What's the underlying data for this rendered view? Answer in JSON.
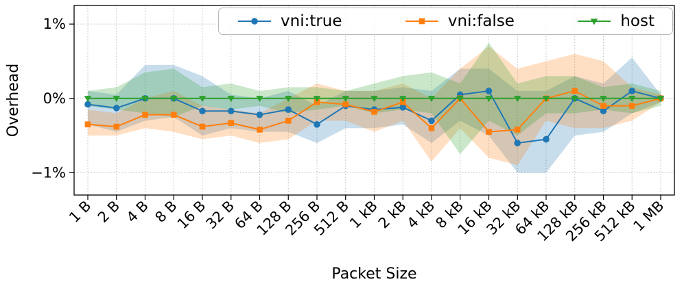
{
  "chart_data": {
    "type": "line",
    "title": "",
    "xlabel": "Packet Size",
    "ylabel": "Overhead",
    "ylim": [
      -1.3,
      1.25
    ],
    "grid": true,
    "legend_position": "upper center",
    "yticks": [
      {
        "value": 1,
        "label": "1%"
      },
      {
        "value": 0,
        "label": "0%"
      },
      {
        "value": -1,
        "label": "−1%"
      }
    ],
    "categories": [
      "1 B",
      "2 B",
      "4 B",
      "8 B",
      "16 B",
      "32 B",
      "64 B",
      "128 B",
      "256 B",
      "512 B",
      "1 kB",
      "2 kB",
      "4 kB",
      "8 kB",
      "16 kB",
      "32 kB",
      "64 kB",
      "128 kB",
      "256 kB",
      "512 kB",
      "1 MB"
    ],
    "series": [
      {
        "name": "vni:true",
        "color": "#1f77b4",
        "marker": "circle",
        "values": [
          -0.08,
          -0.13,
          0.0,
          0.0,
          -0.17,
          -0.17,
          -0.22,
          -0.15,
          -0.35,
          -0.1,
          -0.15,
          -0.12,
          -0.3,
          0.05,
          0.1,
          -0.6,
          -0.55,
          0.0,
          -0.17,
          0.1,
          0.0
        ],
        "band_low": [
          -0.35,
          -0.45,
          -0.3,
          -0.25,
          -0.5,
          -0.4,
          -0.45,
          -0.45,
          -0.6,
          -0.4,
          -0.4,
          -0.35,
          -0.6,
          -0.3,
          -0.5,
          -1.0,
          -1.0,
          -0.5,
          -0.45,
          -0.2,
          -0.05
        ],
        "band_high": [
          0.1,
          0.05,
          0.45,
          0.45,
          0.3,
          0.05,
          0.0,
          0.1,
          -0.1,
          0.1,
          0.1,
          0.15,
          0.1,
          0.4,
          0.4,
          0.1,
          0.1,
          0.3,
          0.2,
          0.55,
          0.05
        ]
      },
      {
        "name": "vni:false",
        "color": "#ff7f0e",
        "marker": "square",
        "values": [
          -0.35,
          -0.38,
          -0.22,
          -0.22,
          -0.38,
          -0.33,
          -0.42,
          -0.3,
          -0.05,
          -0.08,
          -0.18,
          -0.05,
          -0.4,
          0.0,
          -0.45,
          -0.42,
          0.0,
          0.1,
          -0.1,
          -0.1,
          0.0
        ],
        "band_low": [
          -0.5,
          -0.5,
          -0.4,
          -0.45,
          -0.55,
          -0.5,
          -0.6,
          -0.55,
          -0.3,
          -0.3,
          -0.45,
          -0.3,
          -0.85,
          -0.4,
          -0.8,
          -0.9,
          -0.3,
          -0.4,
          -0.4,
          -0.3,
          -0.05
        ],
        "band_high": [
          -0.15,
          -0.2,
          0.0,
          0.1,
          -0.1,
          -0.15,
          -0.2,
          0.0,
          0.2,
          0.1,
          0.1,
          0.2,
          0.0,
          0.4,
          0.7,
          0.4,
          0.5,
          0.6,
          0.5,
          0.15,
          0.05
        ]
      },
      {
        "name": "host",
        "color": "#2ca02c",
        "marker": "triangle-down",
        "values": [
          0,
          0,
          0,
          0,
          0,
          0,
          0,
          0,
          0,
          0,
          0,
          0,
          0,
          0,
          0,
          0,
          0,
          0,
          0,
          0,
          0
        ],
        "band_low": [
          -0.1,
          -0.15,
          -0.2,
          -0.25,
          -0.1,
          -0.15,
          -0.1,
          -0.2,
          -0.15,
          -0.1,
          -0.2,
          -0.15,
          -0.2,
          -0.75,
          -0.3,
          -0.5,
          -0.2,
          -0.2,
          -0.15,
          -0.2,
          -0.1
        ],
        "band_high": [
          0.1,
          0.15,
          0.35,
          0.4,
          0.15,
          0.2,
          0.1,
          0.15,
          0.15,
          0.1,
          0.2,
          0.3,
          0.35,
          0.2,
          0.75,
          0.2,
          0.3,
          0.3,
          0.15,
          0.2,
          0.1
        ]
      }
    ]
  }
}
